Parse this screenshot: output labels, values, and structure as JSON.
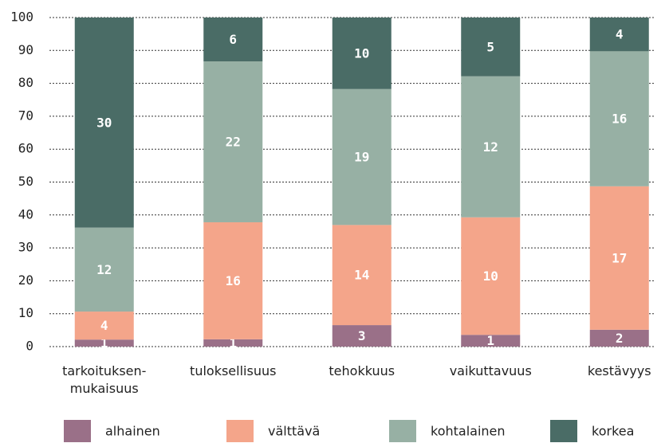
{
  "chart_data": {
    "type": "bar",
    "stacked": "percent",
    "categories": [
      "tarkoituksen-\nmukaisuus",
      "tuloksellisuus",
      "tehokkuus",
      "vaikuttavuus",
      "kestävyys"
    ],
    "series": [
      {
        "name": "alhainen",
        "color": "#9a7088",
        "values": [
          1,
          1,
          3,
          1,
          2
        ]
      },
      {
        "name": "välttävä",
        "color": "#f4a58a",
        "values": [
          4,
          16,
          14,
          10,
          17
        ]
      },
      {
        "name": "kohtalainen",
        "color": "#97b0a4",
        "values": [
          12,
          22,
          19,
          12,
          16
        ]
      },
      {
        "name": "korkea",
        "color": "#4a6c66",
        "values": [
          30,
          6,
          10,
          5,
          4
        ]
      }
    ],
    "ylim": [
      0,
      100
    ],
    "yticks": [
      0,
      10,
      20,
      30,
      40,
      50,
      60,
      70,
      80,
      90,
      100
    ],
    "grid": true,
    "legend": "bottom"
  }
}
